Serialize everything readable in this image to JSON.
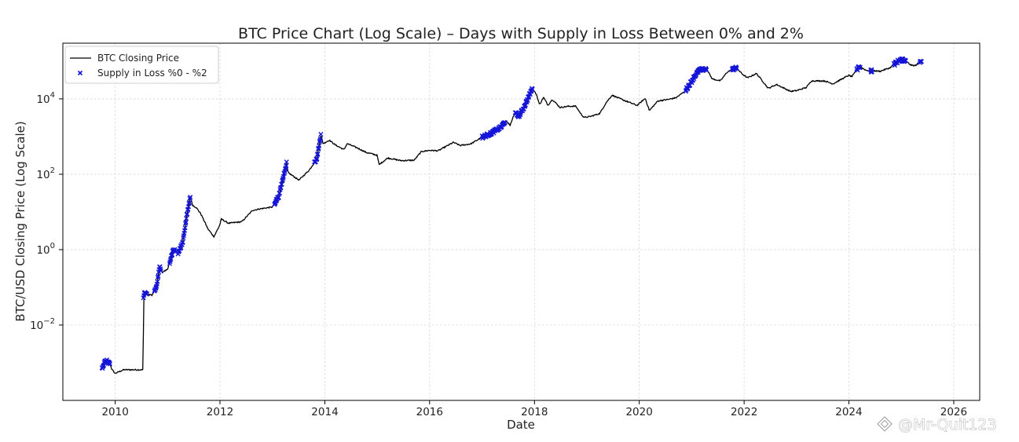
{
  "chart_data": {
    "type": "line",
    "title": "BTC Price Chart (Log Scale) – Days with Supply in Loss Between 0% and 2%",
    "xlabel": "Date",
    "ylabel": "BTC/USD Closing Price (Log Scale)",
    "y_scale": "log",
    "xlim": [
      "2009-01-01",
      "2026-07-01"
    ],
    "ylim": [
      0.0001,
      300000
    ],
    "x_ticks": [
      {
        "value": "2010-01-01",
        "label": "2010"
      },
      {
        "value": "2012-01-01",
        "label": "2012"
      },
      {
        "value": "2014-01-01",
        "label": "2014"
      },
      {
        "value": "2016-01-01",
        "label": "2016"
      },
      {
        "value": "2018-01-01",
        "label": "2018"
      },
      {
        "value": "2020-01-01",
        "label": "2020"
      },
      {
        "value": "2022-01-01",
        "label": "2022"
      },
      {
        "value": "2024-01-01",
        "label": "2024"
      },
      {
        "value": "2026-01-01",
        "label": "2026"
      }
    ],
    "y_ticks": [
      {
        "value": 0.01,
        "base": "10",
        "exp": "−2"
      },
      {
        "value": 1,
        "base": "10",
        "exp": "0"
      },
      {
        "value": 100,
        "base": "10",
        "exp": "2"
      },
      {
        "value": 10000,
        "base": "10",
        "exp": "4"
      }
    ],
    "grid": true,
    "legend_position": "top-left",
    "series": [
      {
        "name": "BTC Closing Price",
        "kind": "line",
        "color": "#000000",
        "points": [
          [
            "2009-10-05",
            0.00076
          ],
          [
            "2009-10-20",
            0.00105
          ],
          [
            "2009-11-05",
            0.0011
          ],
          [
            "2009-11-25",
            0.00095
          ],
          [
            "2009-12-10",
            0.00065
          ],
          [
            "2009-12-31",
            0.00052
          ],
          [
            "2010-03-01",
            0.00065
          ],
          [
            "2010-07-15",
            0.00065
          ],
          [
            "2010-07-17",
            0.05
          ],
          [
            "2010-07-25",
            0.07
          ],
          [
            "2010-08-15",
            0.065
          ],
          [
            "2010-09-15",
            0.062
          ],
          [
            "2010-10-15",
            0.1
          ],
          [
            "2010-11-07",
            0.35
          ],
          [
            "2010-11-25",
            0.25
          ],
          [
            "2010-12-31",
            0.3
          ],
          [
            "2011-02-10",
            1.0
          ],
          [
            "2011-03-15",
            0.8
          ],
          [
            "2011-04-15",
            1.5
          ],
          [
            "2011-05-15",
            8.0
          ],
          [
            "2011-06-08",
            25.0
          ],
          [
            "2011-06-25",
            15.0
          ],
          [
            "2011-07-20",
            13.0
          ],
          [
            "2011-08-20",
            9.0
          ],
          [
            "2011-10-10",
            3.5
          ],
          [
            "2011-11-20",
            2.2
          ],
          [
            "2011-12-31",
            4.5
          ],
          [
            "2012-01-10",
            6.5
          ],
          [
            "2012-03-01",
            5.0
          ],
          [
            "2012-06-01",
            5.5
          ],
          [
            "2012-08-15",
            11.0
          ],
          [
            "2012-10-01",
            12.0
          ],
          [
            "2012-12-31",
            13.5
          ],
          [
            "2013-02-15",
            27.0
          ],
          [
            "2013-04-09",
            200.0
          ],
          [
            "2013-04-20",
            110.0
          ],
          [
            "2013-07-05",
            70.0
          ],
          [
            "2013-09-15",
            130.0
          ],
          [
            "2013-11-05",
            250.0
          ],
          [
            "2013-12-04",
            1100.0
          ],
          [
            "2013-12-20",
            650.0
          ],
          [
            "2014-02-01",
            800.0
          ],
          [
            "2014-03-15",
            600.0
          ],
          [
            "2014-05-15",
            450.0
          ],
          [
            "2014-06-05",
            650.0
          ],
          [
            "2014-08-15",
            500.0
          ],
          [
            "2014-10-15",
            380.0
          ],
          [
            "2014-12-31",
            320.0
          ],
          [
            "2015-01-14",
            180.0
          ],
          [
            "2015-03-15",
            270.0
          ],
          [
            "2015-06-15",
            230.0
          ],
          [
            "2015-09-15",
            235.0
          ],
          [
            "2015-11-05",
            400.0
          ],
          [
            "2015-12-31",
            430.0
          ],
          [
            "2016-03-01",
            420.0
          ],
          [
            "2016-06-15",
            700.0
          ],
          [
            "2016-08-01",
            580.0
          ],
          [
            "2016-10-15",
            640.0
          ],
          [
            "2016-12-31",
            960.0
          ],
          [
            "2017-03-01",
            1200.0
          ],
          [
            "2017-05-15",
            1800.0
          ],
          [
            "2017-06-15",
            2700.0
          ],
          [
            "2017-07-15",
            2000.0
          ],
          [
            "2017-08-15",
            4200.0
          ],
          [
            "2017-09-15",
            3500.0
          ],
          [
            "2017-10-20",
            6000.0
          ],
          [
            "2017-12-17",
            19000.0
          ],
          [
            "2018-01-15",
            13000.0
          ],
          [
            "2018-02-05",
            7000.0
          ],
          [
            "2018-03-05",
            11000.0
          ],
          [
            "2018-04-05",
            6800.0
          ],
          [
            "2018-05-05",
            9700.0
          ],
          [
            "2018-06-28",
            5900.0
          ],
          [
            "2018-08-15",
            6300.0
          ],
          [
            "2018-10-15",
            6400.0
          ],
          [
            "2018-11-25",
            3800.0
          ],
          [
            "2018-12-15",
            3200.0
          ],
          [
            "2019-01-31",
            3450.0
          ],
          [
            "2019-04-01",
            4100.0
          ],
          [
            "2019-05-15",
            7900.0
          ],
          [
            "2019-06-26",
            12500.0
          ],
          [
            "2019-08-15",
            10300.0
          ],
          [
            "2019-10-15",
            8300.0
          ],
          [
            "2019-12-17",
            6700.0
          ],
          [
            "2020-02-12",
            10300.0
          ],
          [
            "2020-03-12",
            4900.0
          ],
          [
            "2020-05-10",
            8800.0
          ],
          [
            "2020-07-25",
            9700.0
          ],
          [
            "2020-09-15",
            10800.0
          ],
          [
            "2020-11-15",
            16000.0
          ],
          [
            "2020-12-31",
            29000.0
          ],
          [
            "2021-01-15",
            37000.0
          ],
          [
            "2021-02-21",
            57000.0
          ],
          [
            "2021-04-14",
            63000.0
          ],
          [
            "2021-05-23",
            34000.0
          ],
          [
            "2021-07-20",
            30000.0
          ],
          [
            "2021-09-06",
            52000.0
          ],
          [
            "2021-11-10",
            67000.0
          ],
          [
            "2021-12-15",
            47000.0
          ],
          [
            "2022-01-24",
            36000.0
          ],
          [
            "2022-03-28",
            47000.0
          ],
          [
            "2022-05-12",
            29000.0
          ],
          [
            "2022-06-18",
            19000.0
          ],
          [
            "2022-08-15",
            24000.0
          ],
          [
            "2022-11-21",
            15800.0
          ],
          [
            "2022-12-31",
            16500.0
          ],
          [
            "2023-03-10",
            20000.0
          ],
          [
            "2023-04-15",
            30000.0
          ],
          [
            "2023-07-15",
            30000.0
          ],
          [
            "2023-09-11",
            25000.0
          ],
          [
            "2023-12-31",
            42000.0
          ],
          [
            "2024-01-23",
            39000.0
          ],
          [
            "2024-03-14",
            73000.0
          ],
          [
            "2024-05-01",
            57000.0
          ],
          [
            "2024-07-05",
            55000.0
          ],
          [
            "2024-08-05",
            54000.0
          ],
          [
            "2024-10-15",
            67000.0
          ],
          [
            "2024-12-17",
            106000.0
          ],
          [
            "2025-01-20",
            108000.0
          ],
          [
            "2025-03-10",
            78000.0
          ],
          [
            "2025-04-08",
            76000.0
          ],
          [
            "2025-05-20",
            105000.0
          ]
        ]
      },
      {
        "name": "Supply in Loss %0 - %2",
        "kind": "scatter",
        "marker": "x",
        "color": "#1515d8",
        "clusters": [
          [
            "2009-10-01",
            "2009-11-25"
          ],
          [
            "2010-07-17",
            "2010-08-10"
          ],
          [
            "2010-10-01",
            "2010-11-15"
          ],
          [
            "2011-01-15",
            "2011-02-20"
          ],
          [
            "2011-03-15",
            "2011-06-08"
          ],
          [
            "2013-01-15",
            "2013-04-09"
          ],
          [
            "2013-10-20",
            "2013-12-04"
          ],
          [
            "2017-01-01",
            "2017-06-10"
          ],
          [
            "2017-08-20",
            "2017-12-17"
          ],
          [
            "2020-11-20",
            "2021-04-14"
          ],
          [
            "2021-10-10",
            "2021-11-10"
          ],
          [
            "2024-02-25",
            "2024-03-20"
          ],
          [
            "2024-06-01",
            "2024-06-10"
          ],
          [
            "2024-11-10",
            "2025-01-31"
          ],
          [
            "2025-05-10",
            "2025-05-21"
          ]
        ]
      }
    ]
  },
  "watermark": {
    "text": "@Mr-Quit123",
    "icon": "diamond-logo-icon"
  }
}
